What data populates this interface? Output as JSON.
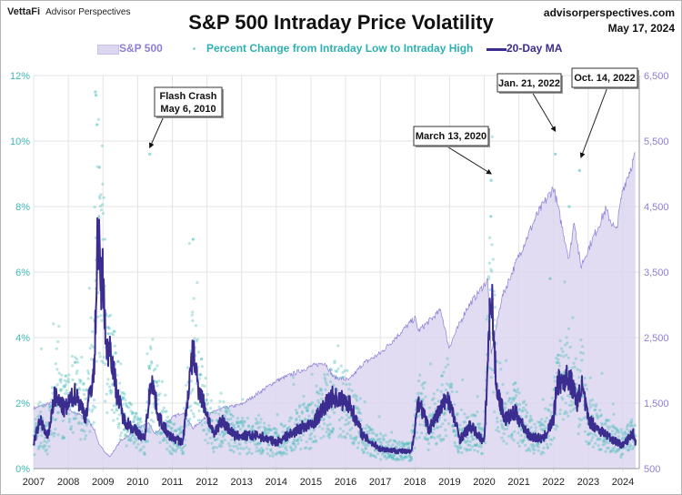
{
  "header": {
    "brand_logo": "VettaFi",
    "brand_sub": "Advisor Perspectives",
    "site": "advisorperspectives.com",
    "date": "May 17, 2024"
  },
  "chart_data": {
    "type": "line",
    "title": "S&P 500 Intraday Price Volatility",
    "legend": {
      "placement": "top",
      "entries": [
        "S&P 500",
        "Percent Change from Intraday Low to Intraday High",
        "20-Day MA"
      ]
    },
    "colors": {
      "sp500_fill": "#dcd6f0",
      "sp500_line": "#8d7fd6",
      "scatter": "#4fbfbf",
      "ma": "#3b2d8f",
      "left_axis": "#3fb8b8",
      "right_axis": "#8d7fd6"
    },
    "grid": true,
    "x_ticks": [
      "2007",
      "2008",
      "2009",
      "2010",
      "2011",
      "2012",
      "2013",
      "2014",
      "2015",
      "2016",
      "2017",
      "2018",
      "2019",
      "2020",
      "2021",
      "2022",
      "2023",
      "2024"
    ],
    "xlim": [
      2007,
      2024.4
    ],
    "y_left": {
      "ticks": [
        "0%",
        "2%",
        "4%",
        "6%",
        "8%",
        "10%",
        "12%"
      ],
      "range": [
        0,
        12
      ]
    },
    "y_right": {
      "ticks": [
        "500",
        "1,500",
        "2,500",
        "3,500",
        "4,500",
        "5,500",
        "6,500"
      ],
      "range": [
        500,
        6500
      ]
    },
    "series": [
      {
        "name": "S&P 500",
        "axis": "right",
        "style": "area",
        "x": [
          2007.0,
          2007.5,
          2007.8,
          2008.0,
          2008.5,
          2008.75,
          2008.9,
          2009.2,
          2009.5,
          2010.0,
          2010.3,
          2010.5,
          2011.0,
          2011.3,
          2011.6,
          2012.0,
          2012.3,
          2013.0,
          2014.0,
          2015.0,
          2015.4,
          2015.65,
          2016.1,
          2016.5,
          2017.0,
          2018.0,
          2018.1,
          2018.75,
          2018.98,
          2019.5,
          2020.1,
          2020.2,
          2020.5,
          2021.0,
          2021.5,
          2022.0,
          2022.45,
          2022.6,
          2022.78,
          2023.0,
          2023.5,
          2023.8,
          2024.0,
          2024.37
        ],
        "y": [
          1420,
          1500,
          1560,
          1400,
          1280,
          1100,
          850,
          680,
          920,
          1110,
          1200,
          1030,
          1280,
          1360,
          1120,
          1300,
          1400,
          1480,
          1840,
          2060,
          2120,
          1900,
          1850,
          2100,
          2260,
          2800,
          2600,
          2920,
          2350,
          2950,
          3380,
          2240,
          3100,
          3750,
          4350,
          4790,
          3700,
          4300,
          3580,
          3850,
          4450,
          4120,
          4770,
          5300
        ]
      },
      {
        "name": "20-Day MA",
        "axis": "left",
        "style": "line",
        "x": [
          2007.0,
          2007.2,
          2007.4,
          2007.6,
          2007.9,
          2008.2,
          2008.5,
          2008.75,
          2008.85,
          2008.95,
          2009.0,
          2009.1,
          2009.2,
          2009.4,
          2009.6,
          2009.9,
          2010.2,
          2010.4,
          2010.6,
          2010.9,
          2011.3,
          2011.6,
          2011.75,
          2011.9,
          2012.2,
          2012.4,
          2012.8,
          2013.5,
          2014.0,
          2014.8,
          2015.0,
          2015.6,
          2016.1,
          2016.5,
          2017.0,
          2017.9,
          2018.1,
          2018.4,
          2018.95,
          2019.3,
          2019.6,
          2020.0,
          2020.2,
          2020.35,
          2020.6,
          2020.9,
          2021.3,
          2021.7,
          2022.0,
          2022.1,
          2022.45,
          2022.7,
          2022.8,
          2023.0,
          2023.3,
          2023.7,
          2024.0,
          2024.3,
          2024.37
        ],
        "y": [
          0.8,
          1.5,
          0.9,
          2.2,
          1.8,
          2.3,
          1.6,
          3.0,
          7.4,
          5.5,
          6.0,
          3.5,
          3.8,
          2.3,
          1.5,
          1.2,
          0.9,
          2.8,
          1.6,
          1.0,
          0.8,
          3.6,
          2.5,
          2.0,
          1.0,
          1.5,
          1.0,
          1.0,
          0.8,
          1.3,
          1.3,
          2.2,
          2.0,
          1.0,
          0.6,
          0.5,
          2.1,
          1.2,
          2.2,
          0.9,
          1.3,
          0.8,
          5.6,
          2.5,
          1.5,
          1.7,
          1.0,
          0.9,
          1.5,
          2.6,
          2.8,
          2.0,
          2.6,
          1.5,
          1.2,
          0.9,
          0.7,
          1.1,
          0.8
        ]
      },
      {
        "name": "Percent Change from Intraday Low to Intraday High",
        "axis": "left",
        "style": "scatter",
        "notable_points": {
          "x": [
            2008.78,
            2008.8,
            2008.83,
            2008.9,
            2010.35,
            2011.6,
            2020.2,
            2020.19,
            2021.9,
            2022.05,
            2022.75,
            2022.45
          ],
          "y": [
            11.5,
            11.4,
            10.5,
            9.2,
            9.6,
            7.0,
            8.8,
            7.7,
            5.8,
            9.6,
            9.1,
            8.0
          ]
        }
      }
    ],
    "annotations": [
      {
        "line1": "Flash Crash",
        "line2": "May 6, 2010",
        "x": 2010.35,
        "y": 9.8
      },
      {
        "line1": "March 13, 2020",
        "line2": "",
        "x": 2020.2,
        "y": 9.0
      },
      {
        "line1": "Jan. 21, 2022",
        "line2": "",
        "x": 2022.05,
        "y": 10.3
      },
      {
        "line1": "Oct. 14, 2022",
        "line2": "",
        "x": 2022.79,
        "y": 9.5
      }
    ]
  }
}
